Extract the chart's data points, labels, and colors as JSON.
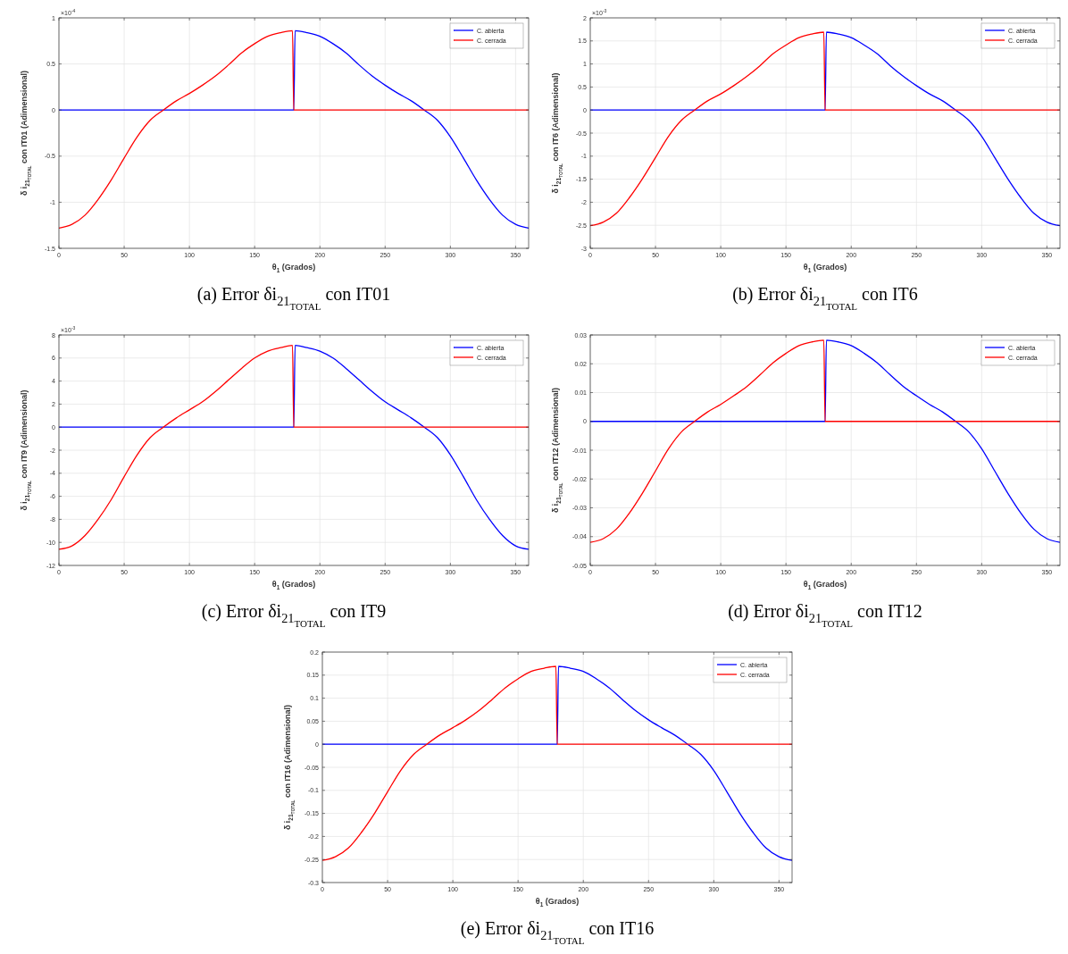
{
  "chart_data": [
    {
      "type": "line",
      "title": "(a) Error δi$_{21}$$_{TOTAL}$ con IT01",
      "xlabel": "θ$_{1}$ (Grados)",
      "ylabel": "δ i$_{21}$$_{TOTAL}$ con IT01 (Adimensional)",
      "annotations": [
        "×10$^{-4}$"
      ],
      "grid": true,
      "legend": "top right",
      "xlim": [
        0,
        360
      ],
      "xticks": [
        0,
        50,
        100,
        150,
        200,
        250,
        300,
        350
      ],
      "ylim": [
        -1.5,
        1
      ],
      "yticks": [
        -1.5,
        -1,
        -0.5,
        0,
        0.5,
        1
      ],
      "series": [
        {
          "name": "C. abierta",
          "color": "#0000ff",
          "x": [
            0,
            180,
            181,
            190,
            200,
            210,
            220,
            230,
            240,
            250,
            260,
            270,
            280,
            290,
            300,
            310,
            320,
            330,
            340,
            350,
            360
          ],
          "values": [
            0,
            0,
            0.86,
            0.84,
            0.8,
            0.72,
            0.62,
            0.49,
            0.37,
            0.27,
            0.18,
            0.1,
            0,
            -0.11,
            -0.29,
            -0.52,
            -0.76,
            -0.97,
            -1.14,
            -1.24,
            -1.28
          ]
        },
        {
          "name": "C. cerrada",
          "color": "#ff0000",
          "x": [
            0,
            10,
            20,
            30,
            40,
            50,
            60,
            70,
            80,
            90,
            100,
            110,
            120,
            130,
            140,
            150,
            160,
            170,
            179,
            180,
            360
          ],
          "values": [
            -1.28,
            -1.24,
            -1.14,
            -0.97,
            -0.76,
            -0.52,
            -0.29,
            -0.11,
            0,
            0.1,
            0.18,
            0.27,
            0.37,
            0.49,
            0.62,
            0.72,
            0.8,
            0.84,
            0.86,
            0,
            0
          ]
        }
      ]
    },
    {
      "type": "line",
      "title": "(b) Error δi$_{21}$$_{TOTAL}$ con IT6",
      "xlabel": "θ$_{1}$ (Grados)",
      "ylabel": "δ i$_{21}$$_{TOTAL}$ con IT6 (Adimensional)",
      "annotations": [
        "×10$^{-3}$"
      ],
      "grid": true,
      "legend": "top right",
      "xlim": [
        0,
        360
      ],
      "xticks": [
        0,
        50,
        100,
        150,
        200,
        250,
        300,
        350
      ],
      "ylim": [
        -3,
        2
      ],
      "yticks": [
        -3,
        -2.5,
        -2,
        -1.5,
        -1,
        -0.5,
        0,
        0.5,
        1,
        1.5,
        2
      ],
      "series": [
        {
          "name": "C. abierta",
          "color": "#0000ff",
          "x": [
            0,
            180,
            181,
            190,
            200,
            210,
            220,
            230,
            240,
            250,
            260,
            270,
            280,
            290,
            300,
            310,
            320,
            330,
            340,
            350,
            360
          ],
          "values": [
            0,
            0,
            1.69,
            1.65,
            1.57,
            1.41,
            1.22,
            0.96,
            0.73,
            0.53,
            0.35,
            0.2,
            0,
            -0.22,
            -0.57,
            -1.03,
            -1.49,
            -1.9,
            -2.24,
            -2.43,
            -2.51
          ]
        },
        {
          "name": "C. cerrada",
          "color": "#ff0000",
          "x": [
            0,
            10,
            20,
            30,
            40,
            50,
            60,
            70,
            80,
            90,
            100,
            110,
            120,
            130,
            140,
            150,
            160,
            170,
            179,
            180,
            360
          ],
          "values": [
            -2.51,
            -2.43,
            -2.24,
            -1.9,
            -1.49,
            -1.03,
            -0.57,
            -0.22,
            0,
            0.2,
            0.35,
            0.53,
            0.73,
            0.96,
            1.22,
            1.41,
            1.57,
            1.65,
            1.69,
            0,
            0
          ]
        }
      ]
    },
    {
      "type": "line",
      "title": "(c) Error δi$_{21}$$_{TOTAL}$ con IT9",
      "xlabel": "θ$_{1}$ (Grados)",
      "ylabel": "δ i$_{21}$$_{TOTAL}$ con IT9 (Adimensional)",
      "annotations": [
        "×10$^{-3}$"
      ],
      "grid": true,
      "legend": "top right",
      "xlim": [
        0,
        360
      ],
      "xticks": [
        0,
        50,
        100,
        150,
        200,
        250,
        300,
        350
      ],
      "ylim": [
        -12,
        8
      ],
      "yticks": [
        -12,
        -10,
        -8,
        -6,
        -4,
        -2,
        0,
        2,
        4,
        6,
        8
      ],
      "series": [
        {
          "name": "C. abierta",
          "color": "#0000ff",
          "x": [
            0,
            180,
            181,
            190,
            200,
            210,
            220,
            230,
            240,
            250,
            260,
            270,
            280,
            290,
            300,
            310,
            320,
            330,
            340,
            350,
            360
          ],
          "values": [
            0,
            0,
            7.1,
            6.9,
            6.6,
            6.0,
            5.1,
            4.1,
            3.1,
            2.2,
            1.5,
            0.8,
            0,
            -0.9,
            -2.4,
            -4.3,
            -6.3,
            -8.0,
            -9.4,
            -10.3,
            -10.6
          ]
        },
        {
          "name": "C. cerrada",
          "color": "#ff0000",
          "x": [
            0,
            10,
            20,
            30,
            40,
            50,
            60,
            70,
            80,
            90,
            100,
            110,
            120,
            130,
            140,
            150,
            160,
            170,
            179,
            180,
            360
          ],
          "values": [
            -10.6,
            -10.3,
            -9.4,
            -8.0,
            -6.3,
            -4.3,
            -2.4,
            -0.9,
            0,
            0.8,
            1.5,
            2.2,
            3.1,
            4.1,
            5.1,
            6.0,
            6.6,
            6.9,
            7.1,
            0,
            0
          ]
        }
      ]
    },
    {
      "type": "line",
      "title": "(d) Error δi$_{21}$$_{TOTAL}$ con IT12",
      "xlabel": "θ$_{1}$ (Grados)",
      "ylabel": "δ i$_{21}$$_{TOTAL}$ con IT12 (Adimensional)",
      "grid": true,
      "legend": "top right",
      "xlim": [
        0,
        360
      ],
      "xticks": [
        0,
        50,
        100,
        150,
        200,
        250,
        300,
        350
      ],
      "ylim": [
        -0.05,
        0.03
      ],
      "yticks": [
        -0.05,
        -0.04,
        -0.03,
        -0.02,
        -0.01,
        0,
        0.01,
        0.02,
        0.03
      ],
      "series": [
        {
          "name": "C. abierta",
          "color": "#0000ff",
          "x": [
            0,
            180,
            181,
            190,
            200,
            210,
            220,
            230,
            240,
            250,
            260,
            270,
            280,
            290,
            300,
            310,
            320,
            330,
            340,
            350,
            360
          ],
          "values": [
            0,
            0,
            0.0282,
            0.0276,
            0.0263,
            0.0236,
            0.0203,
            0.0161,
            0.0121,
            0.0089,
            0.0059,
            0.0033,
            0,
            -0.0036,
            -0.0095,
            -0.0172,
            -0.0249,
            -0.0318,
            -0.0374,
            -0.0407,
            -0.042
          ]
        },
        {
          "name": "C. cerrada",
          "color": "#ff0000",
          "x": [
            0,
            10,
            20,
            30,
            40,
            50,
            60,
            70,
            80,
            90,
            100,
            110,
            120,
            130,
            140,
            150,
            160,
            170,
            179,
            180,
            360
          ],
          "values": [
            -0.042,
            -0.0407,
            -0.0374,
            -0.0318,
            -0.0249,
            -0.0172,
            -0.0095,
            -0.0036,
            0,
            0.0033,
            0.0059,
            0.0089,
            0.0121,
            0.0161,
            0.0203,
            0.0236,
            0.0263,
            0.0276,
            0.0282,
            0,
            0
          ]
        }
      ]
    },
    {
      "type": "line",
      "title": "(e) Error δi$_{21}$$_{TOTAL}$ con IT16",
      "xlabel": "θ$_{1}$ (Grados)",
      "ylabel": "δ i$_{21}$$_{TOTAL}$ con IT16 (Adimensional)",
      "grid": true,
      "legend": "top right",
      "xlim": [
        0,
        360
      ],
      "xticks": [
        0,
        50,
        100,
        150,
        200,
        250,
        300,
        350
      ],
      "ylim": [
        -0.3,
        0.2
      ],
      "yticks": [
        -0.3,
        -0.25,
        -0.2,
        -0.15,
        -0.1,
        -0.05,
        0,
        0.05,
        0.1,
        0.15,
        0.2
      ],
      "series": [
        {
          "name": "C. abierta",
          "color": "#0000ff",
          "x": [
            0,
            180,
            181,
            190,
            200,
            210,
            220,
            230,
            240,
            250,
            260,
            270,
            280,
            290,
            300,
            310,
            320,
            330,
            340,
            350,
            360
          ],
          "values": [
            0,
            0,
            0.169,
            0.165,
            0.158,
            0.142,
            0.122,
            0.097,
            0.073,
            0.053,
            0.036,
            0.02,
            0,
            -0.022,
            -0.057,
            -0.103,
            -0.15,
            -0.191,
            -0.225,
            -0.244,
            -0.252
          ]
        },
        {
          "name": "C. cerrada",
          "color": "#ff0000",
          "x": [
            0,
            10,
            20,
            30,
            40,
            50,
            60,
            70,
            80,
            90,
            100,
            110,
            120,
            130,
            140,
            150,
            160,
            170,
            179,
            180,
            360
          ],
          "values": [
            -0.252,
            -0.244,
            -0.225,
            -0.191,
            -0.15,
            -0.103,
            -0.057,
            -0.022,
            0,
            0.02,
            0.036,
            0.053,
            0.073,
            0.097,
            0.122,
            0.142,
            0.158,
            0.165,
            0.169,
            0,
            0
          ]
        }
      ]
    }
  ]
}
